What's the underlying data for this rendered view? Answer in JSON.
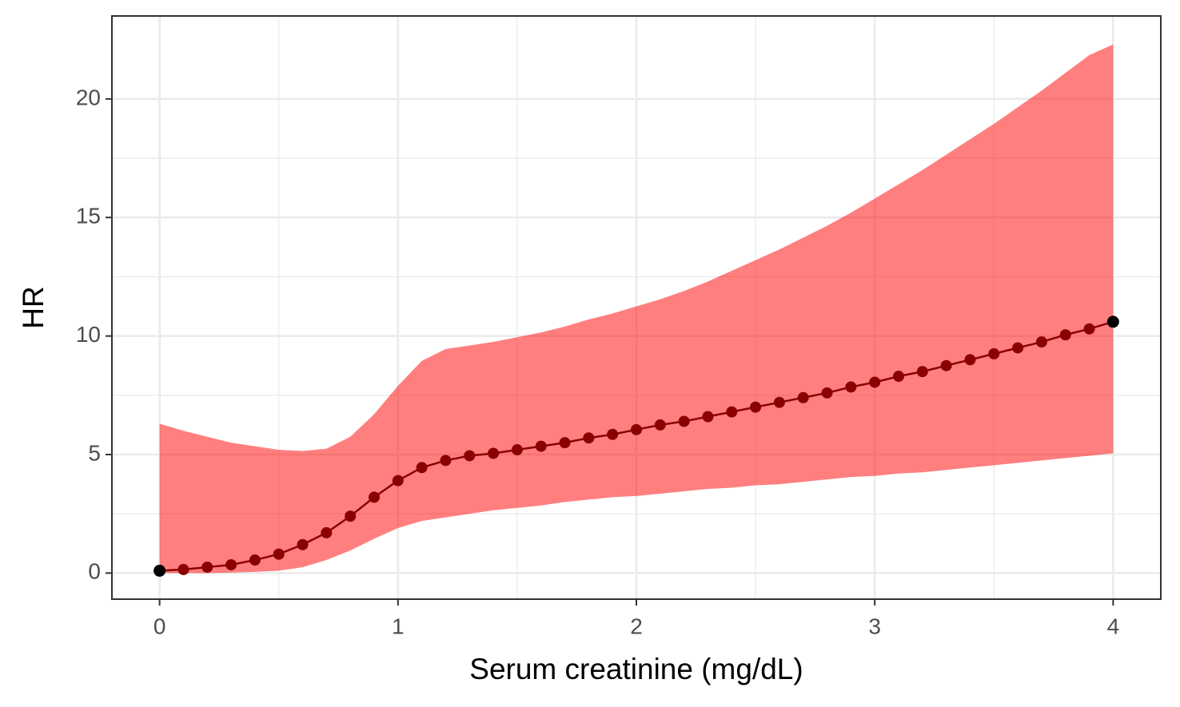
{
  "chart_data": {
    "type": "line",
    "x_label": "Serum creatinine (mg/dL)",
    "y_label": "HR",
    "x": [
      0,
      0.1,
      0.2,
      0.3,
      0.4,
      0.5,
      0.6,
      0.7,
      0.8,
      0.9,
      1.0,
      1.1,
      1.2,
      1.3,
      1.4,
      1.5,
      1.6,
      1.7,
      1.8,
      1.9,
      2.0,
      2.1,
      2.2,
      2.3,
      2.4,
      2.5,
      2.6,
      2.7,
      2.8,
      2.9,
      3.0,
      3.1,
      3.2,
      3.3,
      3.4,
      3.5,
      3.6,
      3.7,
      3.8,
      3.9,
      4.0
    ],
    "values": [
      0.1,
      0.15,
      0.25,
      0.35,
      0.55,
      0.8,
      1.2,
      1.7,
      2.4,
      3.2,
      3.9,
      4.45,
      4.75,
      4.95,
      5.05,
      5.2,
      5.35,
      5.5,
      5.7,
      5.85,
      6.05,
      6.25,
      6.4,
      6.6,
      6.8,
      7.0,
      7.2,
      7.4,
      7.6,
      7.85,
      8.05,
      8.3,
      8.5,
      8.75,
      9.0,
      9.25,
      9.5,
      9.75,
      10.05,
      10.3,
      10.6
    ],
    "ci_upper": [
      6.3,
      6.0,
      5.75,
      5.5,
      5.35,
      5.2,
      5.15,
      5.25,
      5.75,
      6.7,
      7.9,
      8.95,
      9.45,
      9.6,
      9.75,
      9.95,
      10.15,
      10.4,
      10.7,
      10.95,
      11.25,
      11.55,
      11.9,
      12.3,
      12.75,
      13.2,
      13.65,
      14.15,
      14.65,
      15.2,
      15.8,
      16.4,
      17.0,
      17.65,
      18.3,
      18.95,
      19.65,
      20.35,
      21.1,
      21.85,
      22.3
    ],
    "ci_lower": [
      0.0,
      0.0,
      0.0,
      0.02,
      0.05,
      0.1,
      0.25,
      0.55,
      0.95,
      1.45,
      1.9,
      2.2,
      2.35,
      2.5,
      2.65,
      2.75,
      2.85,
      3.0,
      3.1,
      3.2,
      3.25,
      3.35,
      3.45,
      3.55,
      3.6,
      3.7,
      3.75,
      3.85,
      3.95,
      4.05,
      4.1,
      4.2,
      4.25,
      4.35,
      4.45,
      4.55,
      4.65,
      4.75,
      4.85,
      4.95,
      5.05
    ],
    "line_color": "#8b0000",
    "point_color": "#8b0000",
    "endpoint_color": "#000000",
    "band_color": "#ff0000",
    "band_opacity": 0.5,
    "xlim": [
      -0.2,
      4.2
    ],
    "ylim": [
      -1.1,
      23.5
    ],
    "xticks": [
      0,
      1,
      2,
      3,
      4
    ],
    "yticks": [
      0,
      5,
      10,
      15,
      20
    ],
    "grid": true
  }
}
